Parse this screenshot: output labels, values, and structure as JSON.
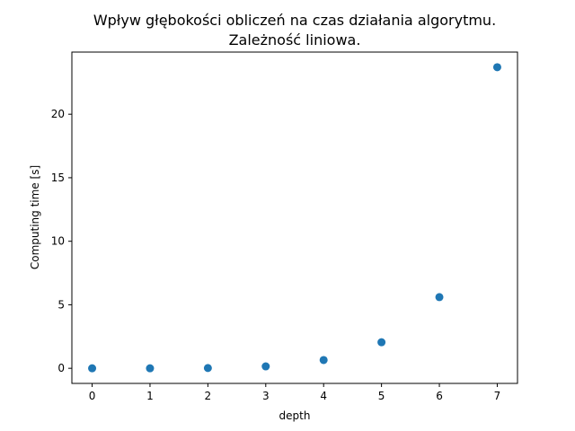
{
  "chart_data": {
    "type": "scatter",
    "title_line1": "Wpływ głębokości obliczeń na czas działania algorytmu.",
    "title_line2": "Zależność liniowa.",
    "xlabel": "depth",
    "ylabel": "Computing time [s]",
    "x": [
      0,
      1,
      2,
      3,
      4,
      5,
      6,
      7
    ],
    "y": [
      0.0,
      0.0,
      0.02,
      0.15,
      0.65,
      2.05,
      5.6,
      23.7
    ],
    "xlim": [
      -0.35,
      7.35
    ],
    "ylim": [
      -1.19,
      24.89
    ],
    "xticks": [
      0,
      1,
      2,
      3,
      4,
      5,
      6,
      7
    ],
    "yticks": [
      0,
      5,
      10,
      15,
      20
    ],
    "marker_color": "#1f77b4",
    "grid": false,
    "legend": "none"
  }
}
